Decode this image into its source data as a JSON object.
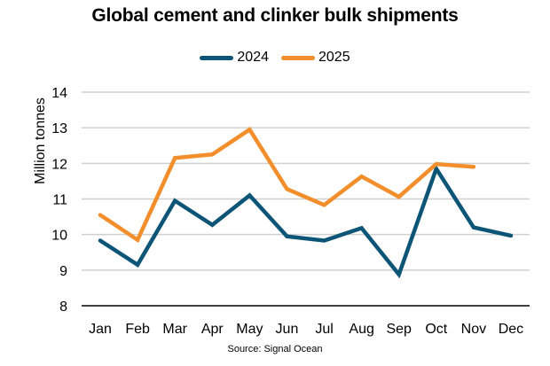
{
  "chart_data": {
    "type": "line",
    "title": "Global cement and clinker bulk shipments",
    "xlabel": "",
    "ylabel": "Million tonnes",
    "ylim": [
      8,
      14
    ],
    "yticks": [
      8,
      9,
      10,
      11,
      12,
      13,
      14
    ],
    "grid": true,
    "legend_position": "top",
    "categories": [
      "Jan",
      "Feb",
      "Mar",
      "Apr",
      "May",
      "Jun",
      "Jul",
      "Aug",
      "Sep",
      "Oct",
      "Nov",
      "Dec"
    ],
    "series": [
      {
        "name": "2024",
        "color": "#0d5577",
        "values": [
          9.83,
          9.15,
          10.95,
          10.27,
          11.1,
          9.95,
          9.83,
          10.18,
          8.88,
          11.85,
          10.2,
          9.97
        ]
      },
      {
        "name": "2025",
        "color": "#f28e2b",
        "values": [
          10.55,
          9.85,
          12.15,
          12.25,
          12.95,
          11.28,
          10.83,
          11.63,
          11.06,
          11.98,
          11.9,
          null
        ]
      }
    ],
    "source": "Source: Signal Ocean"
  }
}
